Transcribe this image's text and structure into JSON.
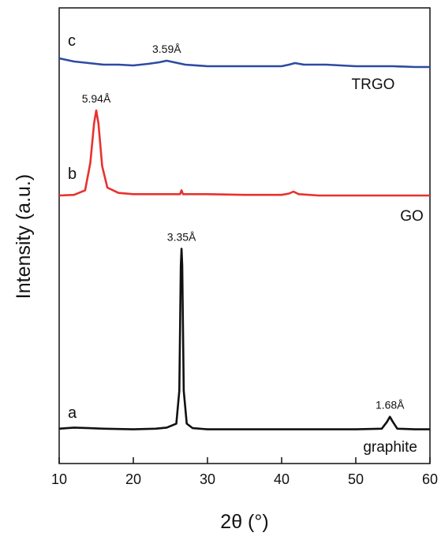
{
  "chart_data": {
    "type": "line",
    "xlabel": "2θ (°)",
    "ylabel": "Intensity (a.u.)",
    "xlim": [
      10,
      60
    ],
    "x_ticks": [
      "10",
      "20",
      "30",
      "40",
      "50",
      "60"
    ],
    "y_ticks_shown": false,
    "grid": false,
    "legend": "none",
    "series": [
      {
        "name": "graphite",
        "letter": "a",
        "color": "#111111",
        "peaks": [
          {
            "x": 26.5,
            "label": "3.35Å"
          },
          {
            "x": 54.6,
            "label": "1.68Å"
          }
        ],
        "points": [
          [
            10,
            0.03
          ],
          [
            12,
            0.05
          ],
          [
            14,
            0.04
          ],
          [
            16,
            0.03
          ],
          [
            20,
            0.02
          ],
          [
            23,
            0.03
          ],
          [
            24.5,
            0.05
          ],
          [
            25.8,
            0.12
          ],
          [
            26.2,
            0.7
          ],
          [
            26.4,
            2.9
          ],
          [
            26.5,
            3.2
          ],
          [
            26.6,
            2.9
          ],
          [
            26.8,
            0.7
          ],
          [
            27.2,
            0.12
          ],
          [
            28,
            0.04
          ],
          [
            30,
            0.02
          ],
          [
            40,
            0.02
          ],
          [
            50,
            0.02
          ],
          [
            53.5,
            0.03
          ],
          [
            54.2,
            0.15
          ],
          [
            54.6,
            0.24
          ],
          [
            55,
            0.15
          ],
          [
            55.6,
            0.03
          ],
          [
            58,
            0.02
          ],
          [
            60,
            0.02
          ]
        ]
      },
      {
        "name": "GO",
        "letter": "b",
        "color": "#e8312f",
        "peaks": [
          {
            "x": 15.0,
            "label": "5.94Å"
          }
        ],
        "points": [
          [
            10,
            0.0
          ],
          [
            12,
            0.01
          ],
          [
            13.5,
            0.08
          ],
          [
            14.2,
            0.5
          ],
          [
            14.7,
            1.1
          ],
          [
            15.0,
            1.3
          ],
          [
            15.3,
            1.1
          ],
          [
            15.8,
            0.45
          ],
          [
            16.5,
            0.12
          ],
          [
            18,
            0.04
          ],
          [
            20,
            0.02
          ],
          [
            25,
            0.02
          ],
          [
            26.3,
            0.02
          ],
          [
            26.5,
            0.08
          ],
          [
            26.7,
            0.02
          ],
          [
            30,
            0.02
          ],
          [
            35,
            0.01
          ],
          [
            40,
            0.01
          ],
          [
            41,
            0.03
          ],
          [
            41.6,
            0.06
          ],
          [
            42.3,
            0.02
          ],
          [
            45,
            0.0
          ],
          [
            50,
            0.0
          ],
          [
            55,
            0.0
          ],
          [
            60,
            0.0
          ]
        ]
      },
      {
        "name": "TRGO",
        "letter": "c",
        "color": "#2c4ba2",
        "peaks": [
          {
            "x": 24.5,
            "label": "3.59Å"
          }
        ],
        "points": [
          [
            10,
            0.08
          ],
          [
            11,
            0.06
          ],
          [
            12,
            0.04
          ],
          [
            14,
            0.02
          ],
          [
            16,
            0.0
          ],
          [
            18,
            0.0
          ],
          [
            20,
            -0.01
          ],
          [
            22,
            0.01
          ],
          [
            23.5,
            0.03
          ],
          [
            24.5,
            0.05
          ],
          [
            25.5,
            0.03
          ],
          [
            27,
            0.0
          ],
          [
            30,
            -0.02
          ],
          [
            35,
            -0.02
          ],
          [
            40,
            -0.02
          ],
          [
            41,
            0.0
          ],
          [
            41.8,
            0.02
          ],
          [
            43,
            0.0
          ],
          [
            46,
            0.0
          ],
          [
            50,
            -0.02
          ],
          [
            55,
            -0.02
          ],
          [
            58,
            -0.03
          ],
          [
            60,
            -0.03
          ]
        ]
      }
    ]
  }
}
